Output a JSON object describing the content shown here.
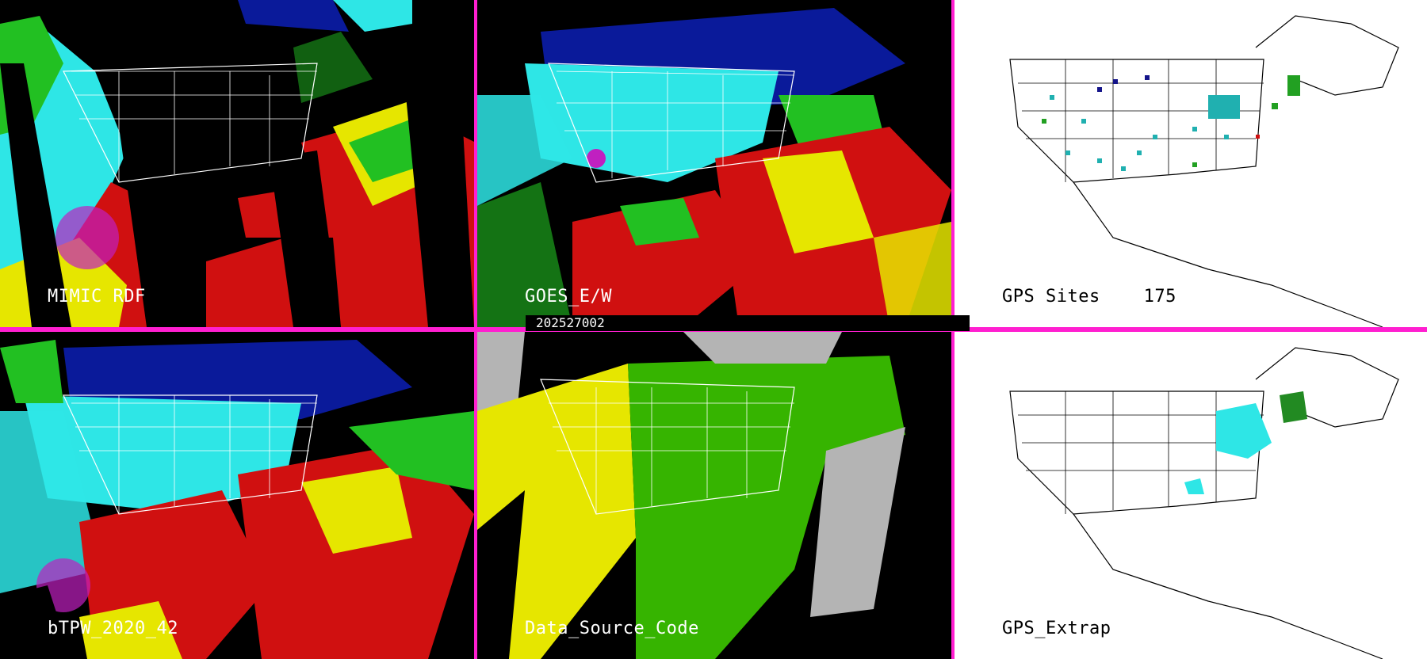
{
  "panels": [
    {
      "id": "mimic",
      "label": "MIMIC RDF"
    },
    {
      "id": "goes",
      "label": "GOES_E/W"
    },
    {
      "id": "gps",
      "label": "GPS Sites    175"
    },
    {
      "id": "btpw",
      "label": "bTPW_2020_42"
    },
    {
      "id": "dsc",
      "label": "Data_Source_Code"
    },
    {
      "id": "extrap",
      "label": "GPS_Extrap"
    }
  ],
  "timestamp": "202527002",
  "colors": {
    "divider": "#ff1fd0",
    "dry_blue": "#0a1a9a",
    "cyan": "#2ee6e6",
    "green": "#22c022",
    "yellow": "#e6e600",
    "red": "#d01010",
    "magenta": "#c020c0",
    "gray": "#b4b4b4",
    "dsc_green": "#36b400"
  }
}
